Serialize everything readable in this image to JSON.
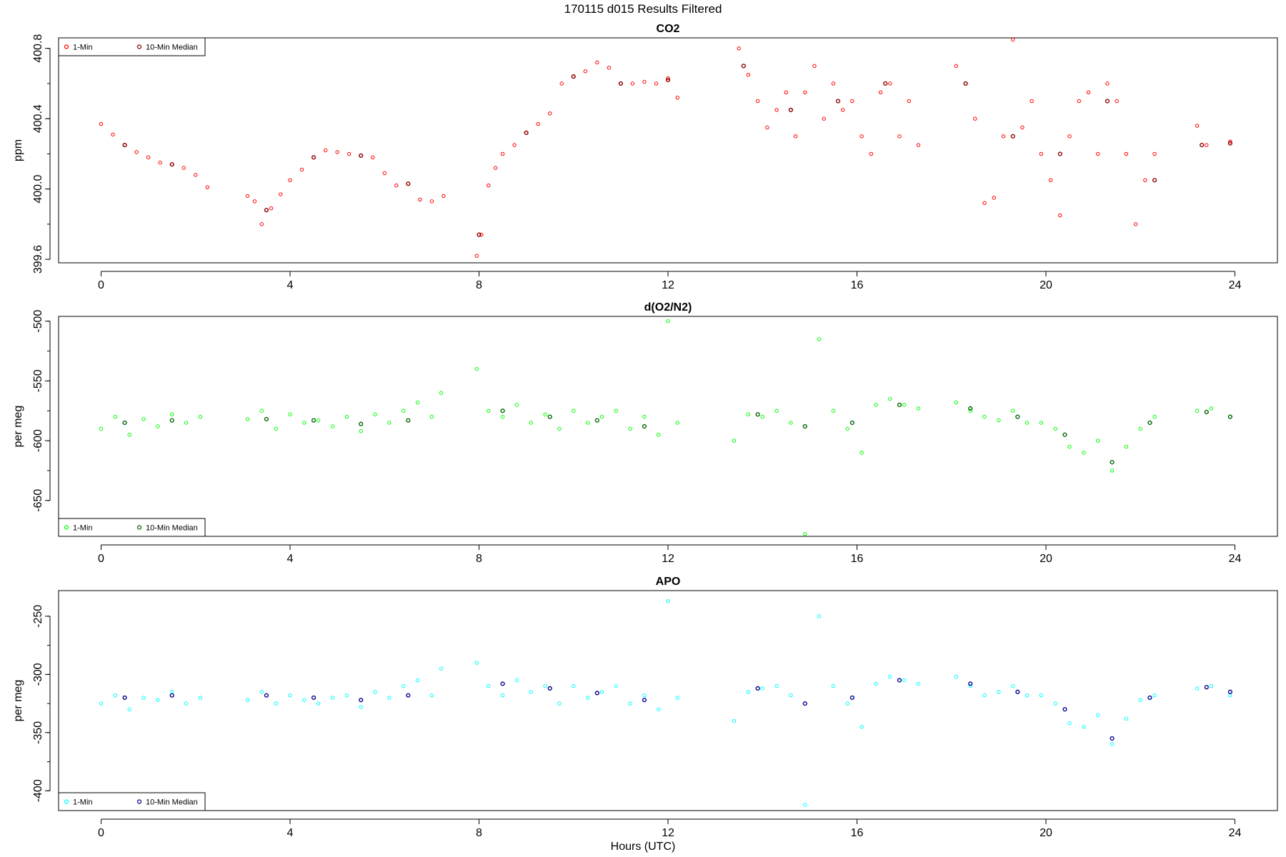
{
  "suptitle": "170115   d015   Results Filtered",
  "xlabel": "Hours (UTC)",
  "chart_data": [
    {
      "type": "scatter",
      "title": "CO2",
      "xlabel": "",
      "ylabel": "ppm",
      "xlim": [
        -0.9,
        24.9
      ],
      "ylim": [
        399.58,
        400.86
      ],
      "xticks": [
        "0",
        "4",
        "8",
        "12",
        "16",
        "20",
        "24"
      ],
      "yticks": [
        "399.6",
        "400.0",
        "400.4",
        "400.8"
      ],
      "legend_position": "top-left",
      "series": [
        {
          "name": "1-Min",
          "color": "#ff0000",
          "x": [
            0.0,
            0.25,
            0.5,
            0.75,
            1.0,
            1.25,
            1.5,
            1.75,
            2.0,
            2.25,
            3.1,
            3.25,
            3.4,
            3.6,
            3.8,
            4.0,
            4.25,
            4.5,
            4.75,
            5.0,
            5.25,
            5.5,
            5.75,
            6.0,
            6.25,
            6.5,
            6.75,
            7.0,
            7.25,
            7.95,
            8.05,
            8.2,
            8.35,
            8.5,
            8.75,
            9.0,
            9.25,
            9.5,
            9.75,
            10.0,
            10.25,
            10.5,
            10.75,
            11.0,
            11.25,
            11.5,
            11.75,
            12.0,
            12.2,
            13.5,
            13.7,
            13.9,
            14.1,
            14.3,
            14.5,
            14.7,
            14.9,
            15.1,
            15.3,
            15.5,
            15.7,
            15.9,
            16.1,
            16.3,
            16.5,
            16.7,
            16.9,
            17.1,
            17.3,
            18.1,
            18.3,
            18.5,
            18.7,
            18.9,
            19.1,
            19.3,
            19.5,
            19.7,
            19.9,
            20.1,
            20.3,
            20.5,
            20.7,
            20.9,
            21.1,
            21.3,
            21.5,
            21.7,
            21.9,
            22.1,
            22.3,
            23.2,
            23.4,
            23.9
          ],
          "y": [
            400.37,
            400.31,
            400.25,
            400.21,
            400.18,
            400.15,
            400.14,
            400.12,
            400.08,
            400.01,
            399.96,
            399.93,
            399.8,
            399.89,
            399.97,
            400.05,
            400.11,
            400.18,
            400.22,
            400.21,
            400.2,
            400.19,
            400.18,
            400.09,
            400.02,
            400.03,
            399.94,
            399.93,
            399.96,
            399.62,
            399.74,
            400.02,
            400.12,
            400.2,
            400.25,
            400.32,
            400.37,
            400.43,
            400.6,
            400.64,
            400.67,
            400.72,
            400.69,
            400.6,
            400.6,
            400.61,
            400.6,
            400.63,
            400.52,
            400.8,
            400.65,
            400.5,
            400.35,
            400.45,
            400.55,
            400.3,
            400.55,
            400.7,
            400.4,
            400.6,
            400.45,
            400.5,
            400.3,
            400.2,
            400.55,
            400.6,
            400.3,
            400.5,
            400.25,
            400.7,
            400.6,
            400.4,
            399.92,
            399.95,
            400.3,
            400.85,
            400.35,
            400.5,
            400.2,
            400.05,
            399.85,
            400.3,
            400.5,
            400.55,
            400.2,
            400.6,
            400.5,
            400.2,
            399.8,
            400.05,
            400.2,
            400.36,
            400.25,
            400.27
          ]
        },
        {
          "name": "10-Min Median",
          "color": "#8b0000",
          "x": [
            0.5,
            1.5,
            3.5,
            4.5,
            5.5,
            6.5,
            8.0,
            9.0,
            10.0,
            11.0,
            12.0,
            13.6,
            14.6,
            15.6,
            16.6,
            18.3,
            19.3,
            20.3,
            21.3,
            22.3,
            23.3,
            23.9
          ],
          "y": [
            400.25,
            400.14,
            399.88,
            400.18,
            400.19,
            400.03,
            399.74,
            400.32,
            400.64,
            400.6,
            400.62,
            400.7,
            400.45,
            400.5,
            400.6,
            400.6,
            400.3,
            400.2,
            400.5,
            400.05,
            400.25,
            400.26
          ]
        }
      ]
    },
    {
      "type": "scatter",
      "title": "d(O2/N2)",
      "xlabel": "",
      "ylabel": "per meg",
      "xlim": [
        -0.9,
        24.9
      ],
      "ylim": [
        -680,
        -496
      ],
      "xticks": [
        "0",
        "4",
        "8",
        "12",
        "16",
        "20",
        "24"
      ],
      "yticks": [
        "-500",
        "-550",
        "-600",
        "-650"
      ],
      "legend_position": "bottom-left",
      "series": [
        {
          "name": "1-Min",
          "color": "#00ff00",
          "x": [
            0.0,
            0.3,
            0.6,
            0.9,
            1.2,
            1.5,
            1.8,
            2.1,
            3.1,
            3.4,
            3.7,
            4.0,
            4.3,
            4.6,
            4.9,
            5.2,
            5.5,
            5.8,
            6.1,
            6.4,
            6.7,
            7.0,
            7.2,
            7.95,
            8.2,
            8.5,
            8.8,
            9.1,
            9.4,
            9.7,
            10.0,
            10.3,
            10.6,
            10.9,
            11.2,
            11.5,
            11.8,
            12.0,
            12.2,
            13.4,
            13.7,
            14.0,
            14.3,
            14.6,
            14.9,
            15.2,
            15.5,
            15.8,
            16.1,
            16.4,
            16.7,
            17.0,
            17.3,
            18.1,
            18.4,
            18.7,
            19.0,
            19.3,
            19.6,
            19.9,
            20.2,
            20.5,
            20.8,
            21.1,
            21.4,
            21.7,
            22.0,
            22.3,
            23.2,
            23.5,
            23.9
          ],
          "y": [
            -590,
            -580,
            -595,
            -582,
            -588,
            -578,
            -585,
            -580,
            -582,
            -575,
            -590,
            -578,
            -585,
            -583,
            -588,
            -580,
            -592,
            -578,
            -585,
            -575,
            -568,
            -580,
            -560,
            -540,
            -575,
            -580,
            -570,
            -585,
            -578,
            -590,
            -575,
            -585,
            -580,
            -575,
            -590,
            -580,
            -595,
            -500,
            -585,
            -600,
            -578,
            -580,
            -575,
            -585,
            -678,
            -515,
            -575,
            -590,
            -610,
            -570,
            -565,
            -570,
            -573,
            -568,
            -575,
            -580,
            -583,
            -575,
            -585,
            -585,
            -590,
            -605,
            -610,
            -600,
            -625,
            -605,
            -590,
            -580,
            -575,
            -573,
            -580
          ]
        },
        {
          "name": "10-Min Median",
          "color": "#006400",
          "x": [
            0.5,
            1.5,
            3.5,
            4.5,
            5.5,
            6.5,
            8.5,
            9.5,
            10.5,
            11.5,
            13.9,
            14.9,
            15.9,
            16.9,
            18.4,
            19.4,
            20.4,
            21.4,
            22.2,
            23.4,
            23.9
          ],
          "y": [
            -585,
            -583,
            -582,
            -583,
            -586,
            -583,
            -575,
            -580,
            -583,
            -588,
            -578,
            -588,
            -585,
            -570,
            -573,
            -580,
            -595,
            -618,
            -585,
            -576,
            -580
          ]
        }
      ]
    },
    {
      "type": "scatter",
      "title": "APO",
      "xlabel": "Hours (UTC)",
      "ylabel": "per meg",
      "xlim": [
        -0.9,
        24.9
      ],
      "ylim": [
        -417,
        -228
      ],
      "xticks": [
        "0",
        "4",
        "8",
        "12",
        "16",
        "20",
        "24"
      ],
      "yticks": [
        "-250",
        "-300",
        "-350",
        "-400"
      ],
      "legend_position": "bottom-left",
      "series": [
        {
          "name": "1-Min",
          "color": "#00ffff",
          "x": [
            0.0,
            0.3,
            0.6,
            0.9,
            1.2,
            1.5,
            1.8,
            2.1,
            3.1,
            3.4,
            3.7,
            4.0,
            4.3,
            4.6,
            4.9,
            5.2,
            5.5,
            5.8,
            6.1,
            6.4,
            6.7,
            7.0,
            7.2,
            7.95,
            8.2,
            8.5,
            8.8,
            9.1,
            9.4,
            9.7,
            10.0,
            10.3,
            10.6,
            10.9,
            11.2,
            11.5,
            11.8,
            12.0,
            12.2,
            13.4,
            13.7,
            14.0,
            14.3,
            14.6,
            14.9,
            15.2,
            15.5,
            15.8,
            16.1,
            16.4,
            16.7,
            17.0,
            17.3,
            18.1,
            18.4,
            18.7,
            19.0,
            19.3,
            19.6,
            19.9,
            20.2,
            20.5,
            20.8,
            21.1,
            21.4,
            21.7,
            22.0,
            22.3,
            23.2,
            23.5,
            23.9
          ],
          "y": [
            -325,
            -318,
            -330,
            -320,
            -322,
            -315,
            -325,
            -320,
            -322,
            -315,
            -325,
            -318,
            -322,
            -325,
            -320,
            -318,
            -328,
            -315,
            -320,
            -310,
            -305,
            -318,
            -295,
            -290,
            -310,
            -318,
            -305,
            -315,
            -310,
            -325,
            -310,
            -320,
            -315,
            -310,
            -325,
            -318,
            -330,
            -237,
            -320,
            -340,
            -315,
            -312,
            -310,
            -318,
            -412,
            -250,
            -310,
            -325,
            -345,
            -308,
            -302,
            -305,
            -308,
            -302,
            -310,
            -318,
            -315,
            -310,
            -318,
            -318,
            -325,
            -342,
            -345,
            -335,
            -360,
            -338,
            -322,
            -318,
            -312,
            -310,
            -318
          ]
        },
        {
          "name": "10-Min Median",
          "color": "#00008b",
          "x": [
            0.5,
            1.5,
            3.5,
            4.5,
            5.5,
            6.5,
            8.5,
            9.5,
            10.5,
            11.5,
            13.9,
            14.9,
            15.9,
            16.9,
            18.4,
            19.4,
            20.4,
            21.4,
            22.2,
            23.4,
            23.9
          ],
          "y": [
            -320,
            -318,
            -318,
            -320,
            -322,
            -318,
            -308,
            -312,
            -316,
            -322,
            -312,
            -325,
            -320,
            -305,
            -308,
            -315,
            -330,
            -355,
            -320,
            -311,
            -315
          ]
        }
      ]
    }
  ]
}
